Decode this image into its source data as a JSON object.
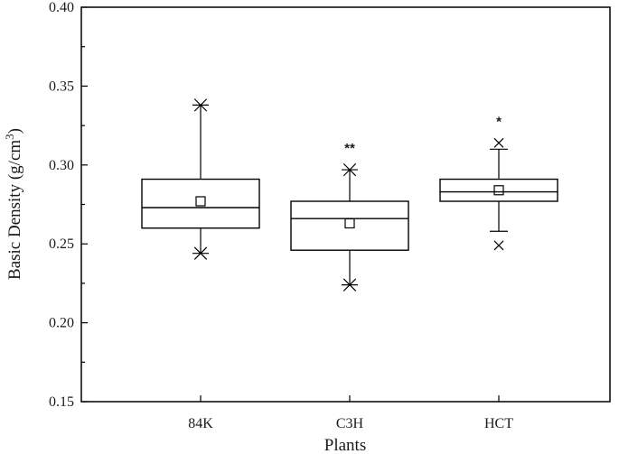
{
  "chart_data": {
    "type": "box",
    "xlabel": "Plants",
    "ylabel_main": "Basic Density (g/cm",
    "ylabel_sup": "3",
    "ylabel_close": ")",
    "ylim": [
      0.15,
      0.4
    ],
    "yticks": [
      "0.15",
      "0.20",
      "0.25",
      "0.30",
      "0.35",
      "0.40"
    ],
    "categories": [
      "84K",
      "C3H",
      "HCT"
    ],
    "boxes": [
      {
        "name": "84K",
        "whisker_low": 0.244,
        "q1": 0.26,
        "median": 0.273,
        "q3": 0.291,
        "whisker_high": 0.338,
        "mean": 0.277,
        "outliers": [],
        "significance": ""
      },
      {
        "name": "C3H",
        "whisker_low": 0.224,
        "q1": 0.246,
        "median": 0.266,
        "q3": 0.277,
        "whisker_high": 0.297,
        "mean": 0.263,
        "outliers": [],
        "significance": "**"
      },
      {
        "name": "HCT",
        "whisker_low": 0.258,
        "q1": 0.277,
        "median": 0.283,
        "q3": 0.291,
        "whisker_high": 0.31,
        "mean": 0.284,
        "outliers": [
          0.314,
          0.249
        ],
        "significance": "*"
      }
    ],
    "legend": "none",
    "grid": false
  }
}
